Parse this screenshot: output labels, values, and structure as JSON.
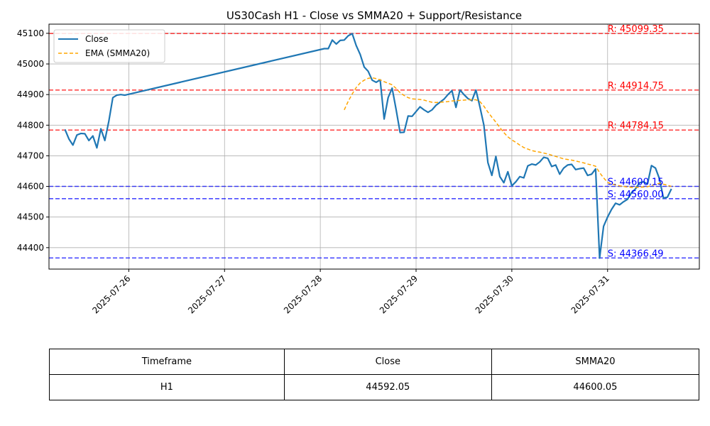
{
  "chart_data": {
    "type": "line",
    "title": "US30Cash H1 - Close vs SMMA20 + Support/Resistance",
    "xlabel": "",
    "ylabel": "",
    "ylim": [
      44330,
      45130
    ],
    "xlim": [
      "2025-07-25 04:00",
      "2025-07-31 23:00"
    ],
    "x_ticks": [
      "2025-07-26",
      "2025-07-27",
      "2025-07-28",
      "2025-07-29",
      "2025-07-30",
      "2025-07-31"
    ],
    "y_ticks": [
      44400,
      44500,
      44600,
      44700,
      44800,
      44900,
      45000,
      45100
    ],
    "grid": true,
    "legend": "upper-left",
    "series": [
      {
        "name": "Close",
        "color": "#1f77b4",
        "style": "solid",
        "points": [
          [
            "2025-07-25 08:00",
            44786
          ],
          [
            "2025-07-25 09:00",
            44755
          ],
          [
            "2025-07-25 10:00",
            44735
          ],
          [
            "2025-07-25 11:00",
            44768
          ],
          [
            "2025-07-25 12:00",
            44773
          ],
          [
            "2025-07-25 13:00",
            44772
          ],
          [
            "2025-07-25 14:00",
            44750
          ],
          [
            "2025-07-25 15:00",
            44765
          ],
          [
            "2025-07-25 16:00",
            44726
          ],
          [
            "2025-07-25 17:00",
            44788
          ],
          [
            "2025-07-25 18:00",
            44750
          ],
          [
            "2025-07-25 19:00",
            44813
          ],
          [
            "2025-07-25 20:00",
            44890
          ],
          [
            "2025-07-25 21:00",
            44898
          ],
          [
            "2025-07-25 22:00",
            44900
          ],
          [
            "2025-07-25 23:00",
            44898
          ],
          [
            "2025-07-28 01:00",
            45050
          ],
          [
            "2025-07-28 02:00",
            45050
          ],
          [
            "2025-07-28 03:00",
            45078
          ],
          [
            "2025-07-28 04:00",
            45065
          ],
          [
            "2025-07-28 05:00",
            45077
          ],
          [
            "2025-07-28 06:00",
            45078
          ],
          [
            "2025-07-28 07:00",
            45092
          ],
          [
            "2025-07-28 08:00",
            45099
          ],
          [
            "2025-07-28 09:00",
            45060
          ],
          [
            "2025-07-28 10:00",
            45031
          ],
          [
            "2025-07-28 11:00",
            44990
          ],
          [
            "2025-07-28 12:00",
            44976
          ],
          [
            "2025-07-28 13:00",
            44947
          ],
          [
            "2025-07-28 14:00",
            44940
          ],
          [
            "2025-07-28 15:00",
            44948
          ],
          [
            "2025-07-28 16:00",
            44820
          ],
          [
            "2025-07-28 17:00",
            44890
          ],
          [
            "2025-07-28 18:00",
            44921
          ],
          [
            "2025-07-28 19:00",
            44851
          ],
          [
            "2025-07-28 20:00",
            44776
          ],
          [
            "2025-07-28 21:00",
            44777
          ],
          [
            "2025-07-28 22:00",
            44830
          ],
          [
            "2025-07-28 23:00",
            44829
          ],
          [
            "2025-07-29 01:00",
            44860
          ],
          [
            "2025-07-29 02:00",
            44850
          ],
          [
            "2025-07-29 03:00",
            44842
          ],
          [
            "2025-07-29 04:00",
            44850
          ],
          [
            "2025-07-29 05:00",
            44865
          ],
          [
            "2025-07-29 06:00",
            44875
          ],
          [
            "2025-07-29 07:00",
            44885
          ],
          [
            "2025-07-29 08:00",
            44900
          ],
          [
            "2025-07-29 09:00",
            44913
          ],
          [
            "2025-07-29 10:00",
            44858
          ],
          [
            "2025-07-29 11:00",
            44915
          ],
          [
            "2025-07-29 12:00",
            44900
          ],
          [
            "2025-07-29 13:00",
            44887
          ],
          [
            "2025-07-29 14:00",
            44880
          ],
          [
            "2025-07-29 15:00",
            44915
          ],
          [
            "2025-07-29 16:00",
            44860
          ],
          [
            "2025-07-29 17:00",
            44800
          ],
          [
            "2025-07-29 18:00",
            44678
          ],
          [
            "2025-07-29 19:00",
            44636
          ],
          [
            "2025-07-29 20:00",
            44698
          ],
          [
            "2025-07-29 21:00",
            44632
          ],
          [
            "2025-07-29 22:00",
            44612
          ],
          [
            "2025-07-29 23:00",
            44648
          ],
          [
            "2025-07-30 00:00",
            44602
          ],
          [
            "2025-07-30 01:00",
            44615
          ],
          [
            "2025-07-30 02:00",
            44632
          ],
          [
            "2025-07-30 03:00",
            44628
          ],
          [
            "2025-07-30 04:00",
            44667
          ],
          [
            "2025-07-30 05:00",
            44673
          ],
          [
            "2025-07-30 06:00",
            44670
          ],
          [
            "2025-07-30 07:00",
            44680
          ],
          [
            "2025-07-30 08:00",
            44695
          ],
          [
            "2025-07-30 09:00",
            44692
          ],
          [
            "2025-07-30 10:00",
            44665
          ],
          [
            "2025-07-30 11:00",
            44670
          ],
          [
            "2025-07-30 12:00",
            44640
          ],
          [
            "2025-07-30 13:00",
            44660
          ],
          [
            "2025-07-30 14:00",
            44670
          ],
          [
            "2025-07-30 15:00",
            44672
          ],
          [
            "2025-07-30 16:00",
            44655
          ],
          [
            "2025-07-30 17:00",
            44658
          ],
          [
            "2025-07-30 18:00",
            44660
          ],
          [
            "2025-07-30 19:00",
            44636
          ],
          [
            "2025-07-30 20:00",
            44640
          ],
          [
            "2025-07-30 21:00",
            44657
          ],
          [
            "2025-07-30 22:00",
            44366
          ],
          [
            "2025-07-30 23:00",
            44470
          ],
          [
            "2025-07-31 00:00",
            44500
          ],
          [
            "2025-07-31 01:00",
            44525
          ],
          [
            "2025-07-31 02:00",
            44545
          ],
          [
            "2025-07-31 03:00",
            44540
          ],
          [
            "2025-07-31 04:00",
            44550
          ],
          [
            "2025-07-31 05:00",
            44558
          ],
          [
            "2025-07-31 06:00",
            44580
          ],
          [
            "2025-07-31 07:00",
            44592
          ],
          [
            "2025-07-31 08:00",
            44612
          ],
          [
            "2025-07-31 09:00",
            44615
          ],
          [
            "2025-07-31 10:00",
            44608
          ],
          [
            "2025-07-31 11:00",
            44668
          ],
          [
            "2025-07-31 12:00",
            44660
          ],
          [
            "2025-07-31 13:00",
            44625
          ],
          [
            "2025-07-31 14:00",
            44562
          ],
          [
            "2025-07-31 15:00",
            44565
          ],
          [
            "2025-07-31 16:00",
            44592
          ]
        ]
      },
      {
        "name": "EMA (SMMA20)",
        "color": "#ffa500",
        "style": "dashed",
        "points": [
          [
            "2025-07-28 06:00",
            44850
          ],
          [
            "2025-07-28 07:00",
            44878
          ],
          [
            "2025-07-28 08:00",
            44902
          ],
          [
            "2025-07-28 09:00",
            44923
          ],
          [
            "2025-07-28 10:00",
            44938
          ],
          [
            "2025-07-28 11:00",
            44947
          ],
          [
            "2025-07-28 12:00",
            44953
          ],
          [
            "2025-07-28 13:00",
            44955
          ],
          [
            "2025-07-28 14:00",
            44952
          ],
          [
            "2025-07-28 15:00",
            44948
          ],
          [
            "2025-07-28 16:00",
            44942
          ],
          [
            "2025-07-28 17:00",
            44937
          ],
          [
            "2025-07-28 18:00",
            44932
          ],
          [
            "2025-07-28 19:00",
            44920
          ],
          [
            "2025-07-28 20:00",
            44906
          ],
          [
            "2025-07-28 21:00",
            44897
          ],
          [
            "2025-07-28 22:00",
            44890
          ],
          [
            "2025-07-28 23:00",
            44886
          ],
          [
            "2025-07-29 01:00",
            44884
          ],
          [
            "2025-07-29 02:00",
            44882
          ],
          [
            "2025-07-29 03:00",
            44878
          ],
          [
            "2025-07-29 04:00",
            44875
          ],
          [
            "2025-07-29 05:00",
            44874
          ],
          [
            "2025-07-29 06:00",
            44875
          ],
          [
            "2025-07-29 07:00",
            44876
          ],
          [
            "2025-07-29 08:00",
            44877
          ],
          [
            "2025-07-29 09:00",
            44879
          ],
          [
            "2025-07-29 10:00",
            44880
          ],
          [
            "2025-07-29 11:00",
            44881
          ],
          [
            "2025-07-29 12:00",
            44882
          ],
          [
            "2025-07-29 13:00",
            44883
          ],
          [
            "2025-07-29 14:00",
            44883
          ],
          [
            "2025-07-29 15:00",
            44883
          ],
          [
            "2025-07-29 16:00",
            44877
          ],
          [
            "2025-07-29 17:00",
            44862
          ],
          [
            "2025-07-29 18:00",
            44843
          ],
          [
            "2025-07-29 19:00",
            44826
          ],
          [
            "2025-07-29 20:00",
            44810
          ],
          [
            "2025-07-29 21:00",
            44792
          ],
          [
            "2025-07-29 22:00",
            44776
          ],
          [
            "2025-07-29 23:00",
            44762
          ],
          [
            "2025-07-30 00:00",
            44752
          ],
          [
            "2025-07-30 01:00",
            44744
          ],
          [
            "2025-07-30 02:00",
            44735
          ],
          [
            "2025-07-30 03:00",
            44727
          ],
          [
            "2025-07-30 04:00",
            44722
          ],
          [
            "2025-07-30 05:00",
            44717
          ],
          [
            "2025-07-30 06:00",
            44714
          ],
          [
            "2025-07-30 07:00",
            44712
          ],
          [
            "2025-07-30 08:00",
            44709
          ],
          [
            "2025-07-30 09:00",
            44706
          ],
          [
            "2025-07-30 10:00",
            44702
          ],
          [
            "2025-07-30 11:00",
            44698
          ],
          [
            "2025-07-30 12:00",
            44694
          ],
          [
            "2025-07-30 13:00",
            44690
          ],
          [
            "2025-07-30 14:00",
            44688
          ],
          [
            "2025-07-30 15:00",
            44686
          ],
          [
            "2025-07-30 16:00",
            44683
          ],
          [
            "2025-07-30 17:00",
            44680
          ],
          [
            "2025-07-30 18:00",
            44677
          ],
          [
            "2025-07-30 19:00",
            44673
          ],
          [
            "2025-07-30 20:00",
            44670
          ],
          [
            "2025-07-30 21:00",
            44666
          ],
          [
            "2025-07-30 22:00",
            44645
          ],
          [
            "2025-07-30 23:00",
            44628
          ],
          [
            "2025-07-31 00:00",
            44613
          ],
          [
            "2025-07-31 01:00",
            44608
          ],
          [
            "2025-07-31 02:00",
            44605
          ],
          [
            "2025-07-31 03:00",
            44602
          ],
          [
            "2025-07-31 04:00",
            44600
          ],
          [
            "2025-07-31 05:00",
            44598
          ],
          [
            "2025-07-31 06:00",
            44597
          ],
          [
            "2025-07-31 07:00",
            44597
          ],
          [
            "2025-07-31 08:00",
            44597
          ],
          [
            "2025-07-31 09:00",
            44598
          ],
          [
            "2025-07-31 10:00",
            44599
          ],
          [
            "2025-07-31 11:00",
            44603
          ],
          [
            "2025-07-31 12:00",
            44607
          ],
          [
            "2025-07-31 13:00",
            44610
          ],
          [
            "2025-07-31 14:00",
            44607
          ],
          [
            "2025-07-31 15:00",
            44604
          ],
          [
            "2025-07-31 16:00",
            44600
          ]
        ]
      }
    ],
    "hlines": [
      {
        "value": 45099.35,
        "label": "R: 45099.35",
        "color": "#ff0000"
      },
      {
        "value": 44914.75,
        "label": "R: 44914.75",
        "color": "#ff0000"
      },
      {
        "value": 44784.15,
        "label": "R: 44784.15",
        "color": "#ff0000"
      },
      {
        "value": 44600.15,
        "label": "S: 44600.15",
        "color": "#0000ff"
      },
      {
        "value": 44560.0,
        "label": "S: 44560.00",
        "color": "#0000ff"
      },
      {
        "value": 44366.49,
        "label": "S: 44366.49",
        "color": "#0000ff"
      }
    ],
    "hline_label_x": "2025-07-31 00:00"
  },
  "table": {
    "headers": [
      "Timeframe",
      "Close",
      "SMMA20"
    ],
    "rows": [
      [
        "H1",
        "44592.05",
        "44600.05"
      ]
    ]
  }
}
